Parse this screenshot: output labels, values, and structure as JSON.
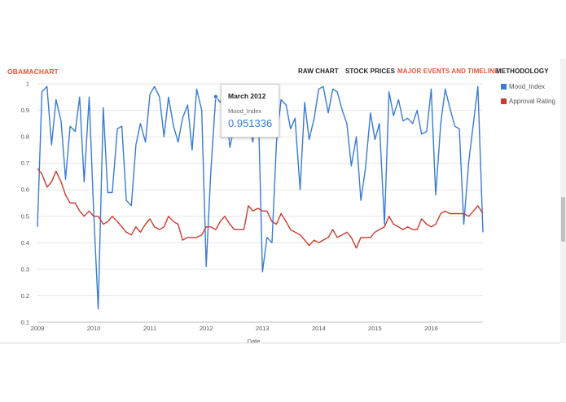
{
  "nav": {
    "brand": "OBAMACHART",
    "items": [
      {
        "label": "RAW CHART",
        "active": false
      },
      {
        "label": "STOCK PRICES",
        "active": false
      },
      {
        "label": "MAJOR EVENTS AND TIMELINE",
        "active": true
      },
      {
        "label": "METHODOLOGY",
        "active": false
      }
    ]
  },
  "colors": {
    "accent": "#e0563b",
    "mood": "#3a7bd5",
    "approval": "#cc3b2f",
    "grid": "#e6e6e6"
  },
  "tooltip": {
    "title": "March 2012",
    "series": "Mood_Index",
    "value": "0.951336"
  },
  "chart_data": {
    "type": "line",
    "title": "",
    "xlabel": "Date",
    "ylabel": "",
    "ylim": [
      0.1,
      1.0
    ],
    "xlim": [
      2009.0,
      2016.92
    ],
    "yticks": [
      "1",
      "0.9",
      "0.8",
      "0.7",
      "0.6",
      "0.5",
      "0.4",
      "0.3",
      "0.2",
      "0.1"
    ],
    "xticks": [
      "2009",
      "2010",
      "2011",
      "2012",
      "2013",
      "2014",
      "2015",
      "2016"
    ],
    "legend": "right",
    "highlight": {
      "x": 2012.17,
      "y": 0.951336
    },
    "series": [
      {
        "name": "Mood_Index",
        "color": "#3a7bd5",
        "points": [
          [
            2009.0,
            0.46
          ],
          [
            2009.08,
            0.97
          ],
          [
            2009.17,
            0.99
          ],
          [
            2009.25,
            0.77
          ],
          [
            2009.33,
            0.94
          ],
          [
            2009.42,
            0.86
          ],
          [
            2009.5,
            0.64
          ],
          [
            2009.58,
            0.84
          ],
          [
            2009.67,
            0.82
          ],
          [
            2009.75,
            0.95
          ],
          [
            2009.83,
            0.63
          ],
          [
            2009.92,
            0.95
          ],
          [
            2010.0,
            0.51
          ],
          [
            2010.08,
            0.15
          ],
          [
            2010.17,
            0.91
          ],
          [
            2010.25,
            0.59
          ],
          [
            2010.33,
            0.59
          ],
          [
            2010.42,
            0.83
          ],
          [
            2010.5,
            0.84
          ],
          [
            2010.58,
            0.56
          ],
          [
            2010.67,
            0.54
          ],
          [
            2010.75,
            0.77
          ],
          [
            2010.83,
            0.85
          ],
          [
            2010.92,
            0.78
          ],
          [
            2011.0,
            0.96
          ],
          [
            2011.08,
            0.99
          ],
          [
            2011.17,
            0.95
          ],
          [
            2011.25,
            0.8
          ],
          [
            2011.33,
            0.95
          ],
          [
            2011.42,
            0.84
          ],
          [
            2011.5,
            0.78
          ],
          [
            2011.58,
            0.87
          ],
          [
            2011.67,
            0.92
          ],
          [
            2011.75,
            0.75
          ],
          [
            2011.83,
            0.98
          ],
          [
            2011.92,
            0.9
          ],
          [
            2012.0,
            0.31
          ],
          [
            2012.08,
            0.66
          ],
          [
            2012.17,
            0.951336
          ],
          [
            2012.25,
            0.93
          ],
          [
            2012.33,
            0.97
          ],
          [
            2012.42,
            0.76
          ],
          [
            2012.5,
            0.84
          ],
          [
            2012.58,
            0.88
          ],
          [
            2012.67,
            0.95
          ],
          [
            2012.75,
            0.86
          ],
          [
            2012.83,
            0.78
          ],
          [
            2012.92,
            0.97
          ],
          [
            2013.0,
            0.29
          ],
          [
            2013.08,
            0.42
          ],
          [
            2013.17,
            0.4
          ],
          [
            2013.25,
            0.78
          ],
          [
            2013.33,
            0.94
          ],
          [
            2013.42,
            0.92
          ],
          [
            2013.5,
            0.83
          ],
          [
            2013.58,
            0.87
          ],
          [
            2013.67,
            0.6
          ],
          [
            2013.75,
            0.93
          ],
          [
            2013.83,
            0.79
          ],
          [
            2013.92,
            0.87
          ],
          [
            2014.0,
            0.98
          ],
          [
            2014.08,
            0.99
          ],
          [
            2014.17,
            0.89
          ],
          [
            2014.25,
            0.98
          ],
          [
            2014.33,
            0.97
          ],
          [
            2014.42,
            0.9
          ],
          [
            2014.5,
            0.85
          ],
          [
            2014.58,
            0.69
          ],
          [
            2014.67,
            0.8
          ],
          [
            2014.75,
            0.56
          ],
          [
            2014.83,
            0.68
          ],
          [
            2014.92,
            0.89
          ],
          [
            2015.0,
            0.79
          ],
          [
            2015.08,
            0.85
          ],
          [
            2015.17,
            0.47
          ],
          [
            2015.25,
            0.97
          ],
          [
            2015.33,
            0.88
          ],
          [
            2015.42,
            0.94
          ],
          [
            2015.5,
            0.86
          ],
          [
            2015.58,
            0.87
          ],
          [
            2015.67,
            0.85
          ],
          [
            2015.75,
            0.9
          ],
          [
            2015.83,
            0.81
          ],
          [
            2015.92,
            0.82
          ],
          [
            2016.0,
            0.98
          ],
          [
            2016.08,
            0.58
          ],
          [
            2016.17,
            0.85
          ],
          [
            2016.25,
            0.98
          ],
          [
            2016.33,
            0.91
          ],
          [
            2016.42,
            0.84
          ],
          [
            2016.5,
            0.83
          ],
          [
            2016.58,
            0.47
          ],
          [
            2016.67,
            0.71
          ],
          [
            2016.75,
            0.85
          ],
          [
            2016.83,
            0.99
          ],
          [
            2016.92,
            0.44
          ]
        ]
      },
      {
        "name": "Approval Rating",
        "color": "#cc3b2f",
        "points": [
          [
            2009.0,
            0.68
          ],
          [
            2009.08,
            0.66
          ],
          [
            2009.17,
            0.61
          ],
          [
            2009.25,
            0.63
          ],
          [
            2009.33,
            0.67
          ],
          [
            2009.42,
            0.63
          ],
          [
            2009.5,
            0.58
          ],
          [
            2009.58,
            0.55
          ],
          [
            2009.67,
            0.55
          ],
          [
            2009.75,
            0.52
          ],
          [
            2009.83,
            0.5
          ],
          [
            2009.92,
            0.52
          ],
          [
            2010.0,
            0.5
          ],
          [
            2010.08,
            0.5
          ],
          [
            2010.17,
            0.47
          ],
          [
            2010.25,
            0.48
          ],
          [
            2010.33,
            0.5
          ],
          [
            2010.42,
            0.48
          ],
          [
            2010.5,
            0.46
          ],
          [
            2010.58,
            0.44
          ],
          [
            2010.67,
            0.43
          ],
          [
            2010.75,
            0.46
          ],
          [
            2010.83,
            0.44
          ],
          [
            2010.92,
            0.47
          ],
          [
            2011.0,
            0.49
          ],
          [
            2011.08,
            0.46
          ],
          [
            2011.17,
            0.45
          ],
          [
            2011.25,
            0.46
          ],
          [
            2011.33,
            0.5
          ],
          [
            2011.42,
            0.48
          ],
          [
            2011.5,
            0.47
          ],
          [
            2011.58,
            0.41
          ],
          [
            2011.67,
            0.42
          ],
          [
            2011.75,
            0.42
          ],
          [
            2011.83,
            0.42
          ],
          [
            2011.92,
            0.43
          ],
          [
            2012.0,
            0.46
          ],
          [
            2012.08,
            0.46
          ],
          [
            2012.17,
            0.45
          ],
          [
            2012.25,
            0.48
          ],
          [
            2012.33,
            0.5
          ],
          [
            2012.42,
            0.47
          ],
          [
            2012.5,
            0.45
          ],
          [
            2012.58,
            0.45
          ],
          [
            2012.67,
            0.45
          ],
          [
            2012.75,
            0.54
          ],
          [
            2012.83,
            0.52
          ],
          [
            2012.92,
            0.53
          ],
          [
            2013.0,
            0.52
          ],
          [
            2013.08,
            0.52
          ],
          [
            2013.17,
            0.48
          ],
          [
            2013.25,
            0.47
          ],
          [
            2013.33,
            0.51
          ],
          [
            2013.42,
            0.48
          ],
          [
            2013.5,
            0.45
          ],
          [
            2013.58,
            0.44
          ],
          [
            2013.67,
            0.43
          ],
          [
            2013.75,
            0.41
          ],
          [
            2013.83,
            0.39
          ],
          [
            2013.92,
            0.41
          ],
          [
            2014.0,
            0.4
          ],
          [
            2014.08,
            0.41
          ],
          [
            2014.17,
            0.42
          ],
          [
            2014.25,
            0.45
          ],
          [
            2014.33,
            0.42
          ],
          [
            2014.42,
            0.43
          ],
          [
            2014.5,
            0.44
          ],
          [
            2014.58,
            0.42
          ],
          [
            2014.67,
            0.38
          ],
          [
            2014.75,
            0.42
          ],
          [
            2014.83,
            0.42
          ],
          [
            2014.92,
            0.42
          ],
          [
            2015.0,
            0.44
          ],
          [
            2015.08,
            0.45
          ],
          [
            2015.17,
            0.46
          ],
          [
            2015.25,
            0.5
          ],
          [
            2015.33,
            0.47
          ],
          [
            2015.42,
            0.46
          ],
          [
            2015.5,
            0.45
          ],
          [
            2015.58,
            0.46
          ],
          [
            2015.67,
            0.45
          ],
          [
            2015.75,
            0.45
          ],
          [
            2015.83,
            0.49
          ],
          [
            2015.92,
            0.47
          ],
          [
            2016.0,
            0.46
          ],
          [
            2016.08,
            0.47
          ],
          [
            2016.17,
            0.51
          ],
          [
            2016.25,
            0.52
          ],
          [
            2016.33,
            0.51
          ],
          [
            2016.42,
            0.51
          ],
          [
            2016.5,
            0.51
          ],
          [
            2016.58,
            0.51
          ],
          [
            2016.67,
            0.5
          ],
          [
            2016.75,
            0.52
          ],
          [
            2016.83,
            0.54
          ],
          [
            2016.92,
            0.51
          ]
        ]
      }
    ]
  }
}
